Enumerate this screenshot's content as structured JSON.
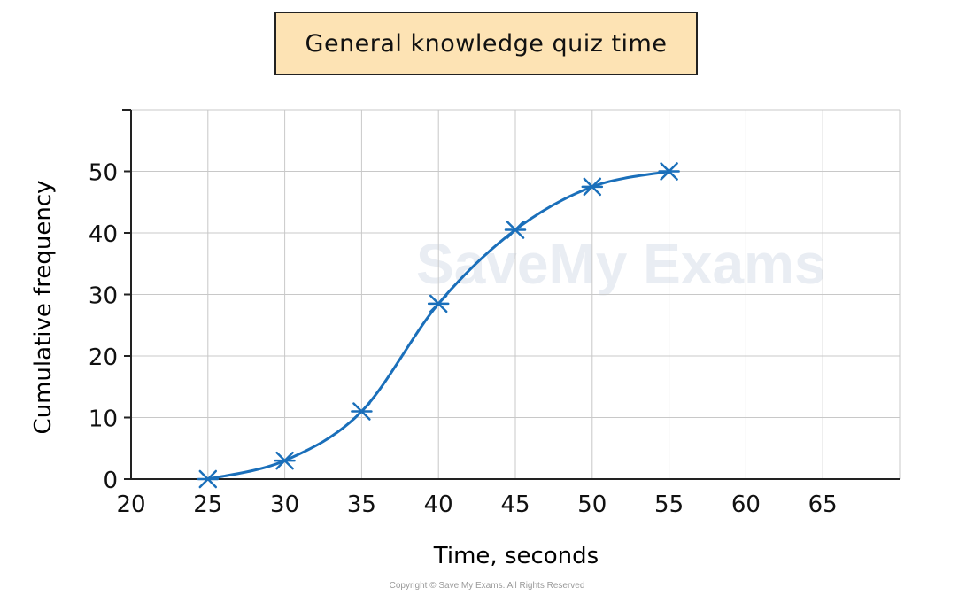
{
  "title": "General knowledge quiz time",
  "copyright": "Copyright © Save My Exams. All Rights Reserved",
  "watermark": "SaveMy Exams",
  "colors": {
    "line": "#1a6fba",
    "grid": "#c8c8c8",
    "axis": "#222222",
    "title_bg": "#fde3b4"
  },
  "chart_data": {
    "type": "line",
    "title": "General knowledge quiz time",
    "xlabel": "Time, seconds",
    "ylabel": "Cumulative frequency",
    "xlim": [
      20,
      70
    ],
    "ylim": [
      0,
      60
    ],
    "xticks": [
      20,
      25,
      30,
      35,
      40,
      45,
      50,
      55,
      60,
      65
    ],
    "yticks": [
      0,
      10,
      20,
      30,
      40,
      50
    ],
    "grid": true,
    "smooth": true,
    "series": [
      {
        "x": [
          25,
          30,
          35,
          40,
          45,
          50,
          55
        ],
        "y": [
          0,
          3,
          11,
          28.5,
          40.5,
          47.5,
          50
        ],
        "marker": "asterisk"
      }
    ]
  }
}
